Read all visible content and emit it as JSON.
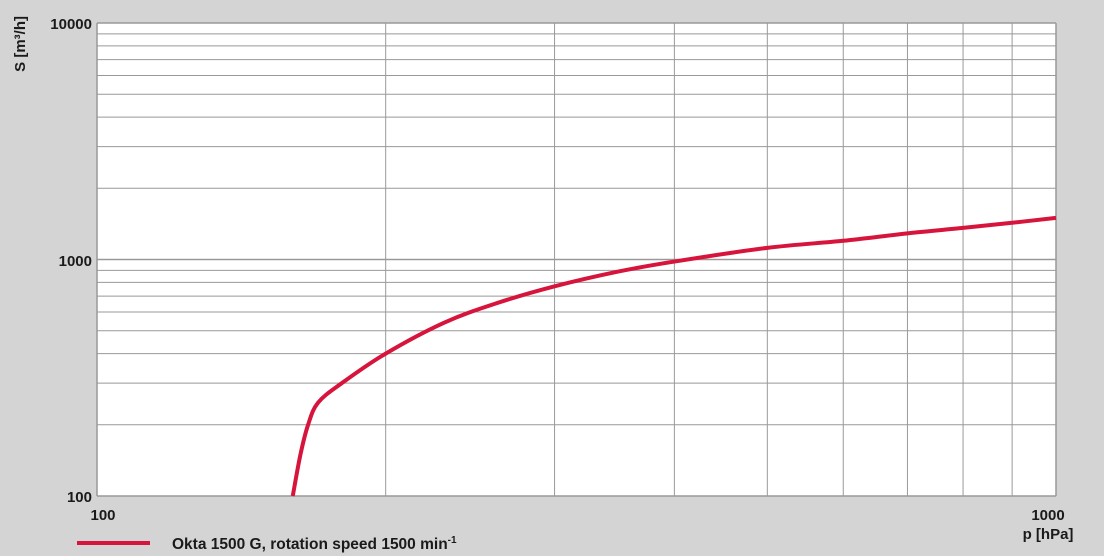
{
  "chart_data": {
    "type": "line",
    "xlabel": "p [hPa]",
    "ylabel": "S [m³/h]",
    "xscale": "log",
    "yscale": "log",
    "xlim": [
      100,
      1000
    ],
    "ylim": [
      100,
      10000
    ],
    "x_ticks": [
      "100",
      "1000"
    ],
    "y_ticks": [
      "100",
      "1000",
      "10000"
    ],
    "grid": true,
    "legend_position": "bottom-left",
    "colors": {
      "background": "#d4d4d4",
      "plot_background": "#ffffff",
      "grid": "#999999",
      "line": "#d6143c"
    },
    "series": [
      {
        "name": "Okta 1500 G, rotation speed 1500 min",
        "name_superscript": "-1",
        "x": [
          160,
          163,
          166,
          170,
          180,
          200,
          230,
          260,
          300,
          350,
          400,
          500,
          600,
          700,
          800,
          900,
          1000
        ],
        "y": [
          100,
          150,
          200,
          248,
          300,
          400,
          540,
          650,
          770,
          890,
          980,
          1120,
          1200,
          1290,
          1360,
          1430,
          1500
        ]
      }
    ]
  }
}
